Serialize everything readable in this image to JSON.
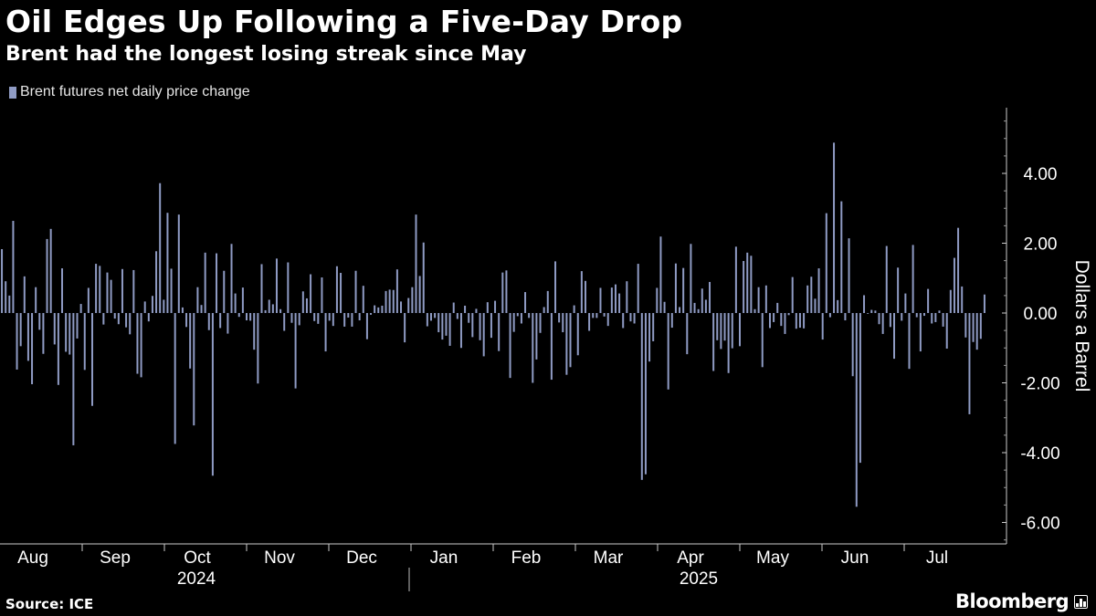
{
  "header": {
    "title": "Oil Edges Up Following a Five-Day Drop",
    "subtitle": "Brent had the longest losing streak since May"
  },
  "legend": {
    "label": "Brent futures net daily price change"
  },
  "footer": {
    "source": "Source: ICE",
    "brand": "Bloomberg"
  },
  "colors": {
    "bar": "#8f9bc4",
    "background": "#000000",
    "axis": "#cccccc"
  },
  "chart_data": {
    "type": "bar",
    "title": "Oil Edges Up Following a Five-Day Drop",
    "subtitle": "Brent had the longest losing streak since May",
    "series_name": "Brent futures net daily price change",
    "ylabel": "Dollars a Barrel",
    "ylim": [
      -6.6,
      5.8
    ],
    "yticks": [
      4,
      2,
      0,
      -2,
      -4,
      -6
    ],
    "ytick_labels": [
      "4.00",
      "2.00",
      "0.00",
      "-2.00",
      "-4.00",
      "-6.00"
    ],
    "months": [
      "Aug",
      "Sep",
      "Oct",
      "Nov",
      "Dec",
      "Jan",
      "Feb",
      "Mar",
      "Apr",
      "May",
      "Jun",
      "Jul"
    ],
    "years": [
      "2024",
      "2025"
    ],
    "values": [
      1.83,
      0.91,
      0.5,
      2.64,
      -1.62,
      -0.95,
      1.05,
      -1.37,
      -2.04,
      0.74,
      -0.48,
      -1.17,
      2.12,
      2.41,
      -0.9,
      -2.06,
      1.28,
      -1.11,
      -1.19,
      -3.79,
      -0.73,
      0.26,
      -1.63,
      0.72,
      -2.66,
      1.41,
      1.35,
      -0.33,
      1.16,
      0.95,
      -0.16,
      -0.32,
      1.26,
      -0.41,
      -0.61,
      1.23,
      -1.74,
      -1.84,
      0.33,
      -0.24,
      0.49,
      1.77,
      3.72,
      0.38,
      2.87,
      1.27,
      -3.75,
      2.82,
      0.16,
      -0.4,
      -1.59,
      -3.22,
      0.74,
      0.23,
      1.73,
      -0.49,
      -4.66,
      1.71,
      -0.43,
      1.21,
      -0.59,
      1.98,
      0.56,
      -0.11,
      0.73,
      -0.21,
      -0.22,
      -1.05,
      -2.02,
      1.4,
      0.08,
      0.38,
      0.25,
      1.56,
      0.11,
      -0.51,
      1.45,
      -0.28,
      -2.16,
      -0.35,
      0.62,
      0.42,
      1.11,
      -0.23,
      -0.31,
      1.02,
      -1.1,
      -0.22,
      -0.37,
      1.34,
      1.15,
      -0.39,
      -0.13,
      -0.39,
      1.21,
      -0.21,
      0.78,
      -0.75,
      -0.05,
      0.22,
      0.16,
      0.21,
      0.63,
      0.67,
      0.66,
      1.25,
      0.33,
      -0.84,
      0.43,
      0.74,
      2.82,
      1.06,
      2.02,
      -0.38,
      -0.22,
      -0.14,
      -0.55,
      -0.76,
      -0.65,
      -0.94,
      0.3,
      -0.17,
      -1.0,
      0.21,
      -0.28,
      -0.69,
      0.12,
      -0.78,
      -1.24,
      0.31,
      -0.71,
      0.35,
      -1.09,
      1.16,
      1.22,
      -1.86,
      -0.54,
      -0.09,
      -0.3,
      0.6,
      -0.14,
      -2.0,
      -1.33,
      -0.57,
      0.17,
      0.63,
      -1.91,
      1.48,
      -0.27,
      -0.55,
      -1.77,
      -1.55,
      0.22,
      -1.21,
      1.2,
      0.92,
      -0.51,
      -0.14,
      -0.14,
      0.72,
      -0.1,
      -0.37,
      0.73,
      0.82,
      0.56,
      -0.43,
      0.91,
      -0.24,
      -0.3,
      1.41,
      -4.78,
      -4.62,
      -1.39,
      -0.81,
      0.72,
      2.19,
      0.32,
      -2.19,
      -0.42,
      1.42,
      0.17,
      1.29,
      -1.18,
      1.98,
      0.29,
      0.11,
      0.7,
      0.38,
      0.89,
      -1.66,
      -0.78,
      -1.03,
      -0.79,
      -1.72,
      -1.01,
      1.9,
      -0.95,
      1.49,
      1.73,
      1.64,
      0.11,
      0.74,
      -1.55,
      0.79,
      -0.43,
      -0.26,
      0.29,
      -0.37,
      -0.6,
      -0.06,
      1.03,
      -0.45,
      -0.42,
      -0.44,
      0.79,
      1.04,
      0.41,
      1.28,
      -0.76,
      2.86,
      -0.12,
      4.88,
      0.37,
      3.2,
      -0.21,
      2.14,
      -1.81,
      -5.55,
      -4.29,
      0.51,
      -0.01,
      0.09,
      0.07,
      -0.32,
      -0.6,
      1.92,
      -0.4,
      -1.31,
      1.3,
      -0.22,
      0.56,
      -1.6,
      1.95,
      -0.12,
      -1.1,
      -0.08,
      0.69,
      -0.3,
      -0.26,
      0.07,
      -0.39,
      -1.02,
      0.66,
      1.58,
      2.44,
      0.76,
      -0.7,
      -2.9,
      -0.83,
      -1.05,
      -0.74,
      0.53
    ]
  }
}
